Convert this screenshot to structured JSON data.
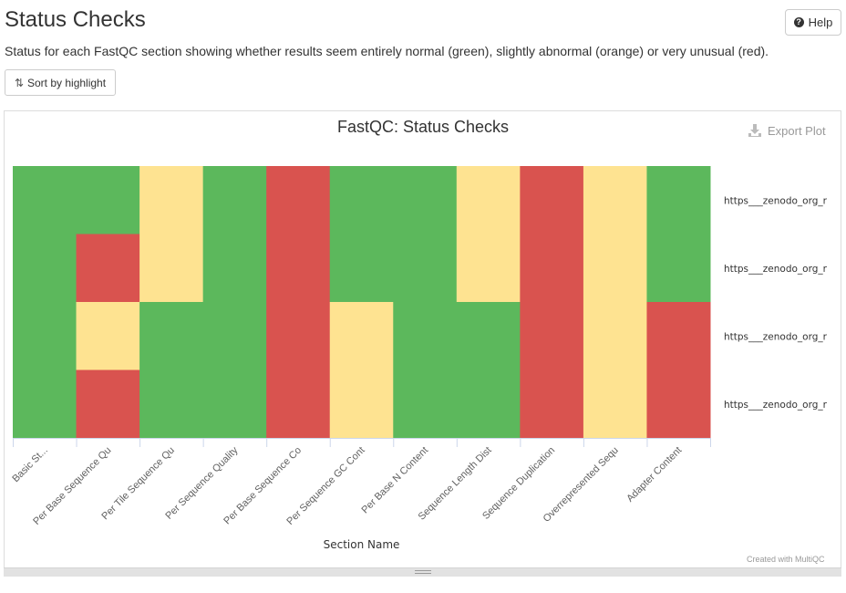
{
  "header": {
    "title": "Status Checks",
    "help_label": "Help",
    "description": "Status for each FastQC section showing whether results seem entirely normal (green), slightly abnormal (orange) or very unusual (red).",
    "sort_label": "Sort by highlight"
  },
  "plot": {
    "export_label": "Export Plot",
    "credit": "Created with MultiQC"
  },
  "colors": {
    "pass": "#5cb85c",
    "warn": "#fee391",
    "fail": "#d9534f"
  },
  "chart_data": {
    "type": "heatmap",
    "title": "FastQC: Status Checks",
    "xlabel": "Section Name",
    "ylabel": "",
    "categories": [
      "Basic St...",
      "Per Base Sequence Qu",
      "Per Tile Sequence Qu",
      "Per Sequence Quality",
      "Per Base Sequence Co",
      "Per Sequence GC Cont",
      "Per Base N Content",
      "Sequence Length Dist",
      "Sequence Duplication",
      "Overrepresented Sequ",
      "Adapter Content"
    ],
    "rows": [
      "https___zenodo_org_r",
      "https___zenodo_org_r",
      "https___zenodo_org_r",
      "https___zenodo_org_r"
    ],
    "legend": [
      "pass",
      "warn",
      "fail"
    ],
    "values": [
      [
        "pass",
        "pass",
        "warn",
        "pass",
        "fail",
        "pass",
        "pass",
        "warn",
        "fail",
        "warn",
        "pass"
      ],
      [
        "pass",
        "fail",
        "warn",
        "pass",
        "fail",
        "pass",
        "pass",
        "warn",
        "fail",
        "warn",
        "pass"
      ],
      [
        "pass",
        "warn",
        "pass",
        "pass",
        "fail",
        "warn",
        "pass",
        "pass",
        "fail",
        "warn",
        "fail"
      ],
      [
        "pass",
        "fail",
        "pass",
        "pass",
        "fail",
        "warn",
        "pass",
        "pass",
        "fail",
        "warn",
        "fail"
      ]
    ]
  }
}
